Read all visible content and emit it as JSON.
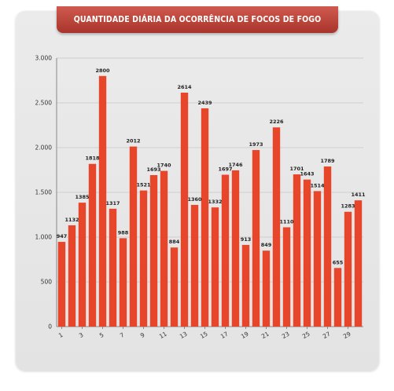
{
  "chart_data": {
    "type": "bar",
    "title": "QUANTIDADE DIÁRIA DA OCORRÊNCIA DE FOCOS DE FOGO",
    "xlabel": "",
    "ylabel": "",
    "categories": [
      "1",
      "2",
      "3",
      "4",
      "5",
      "6",
      "7",
      "8",
      "9",
      "10",
      "11",
      "12",
      "13",
      "14",
      "15",
      "16",
      "17",
      "18",
      "19",
      "20",
      "21",
      "22",
      "23",
      "24",
      "25",
      "26",
      "27",
      "28",
      "29",
      "30"
    ],
    "x_tick_labels": [
      "1",
      "3",
      "5",
      "7",
      "9",
      "11",
      "13",
      "15",
      "17",
      "19",
      "21",
      "23",
      "25",
      "27",
      "29"
    ],
    "values": [
      947,
      1132,
      1385,
      1818,
      2800,
      1317,
      988,
      2012,
      1521,
      1693,
      1740,
      884,
      2614,
      1360,
      2439,
      1332,
      1697,
      1746,
      913,
      1973,
      849,
      2226,
      1110,
      1701,
      1643,
      1514,
      1789,
      655,
      1283,
      1411
    ],
    "y_ticks": [
      0,
      500,
      1000,
      1500,
      2000,
      2500,
      3000
    ],
    "y_tick_labels": [
      "0",
      "500",
      "1.000",
      "1.500",
      "2.000",
      "2.500",
      "3.000"
    ],
    "ylim": [
      0,
      3000
    ],
    "grid": true,
    "bar_color": "#e8462b",
    "banner_color": "#b8443a"
  }
}
